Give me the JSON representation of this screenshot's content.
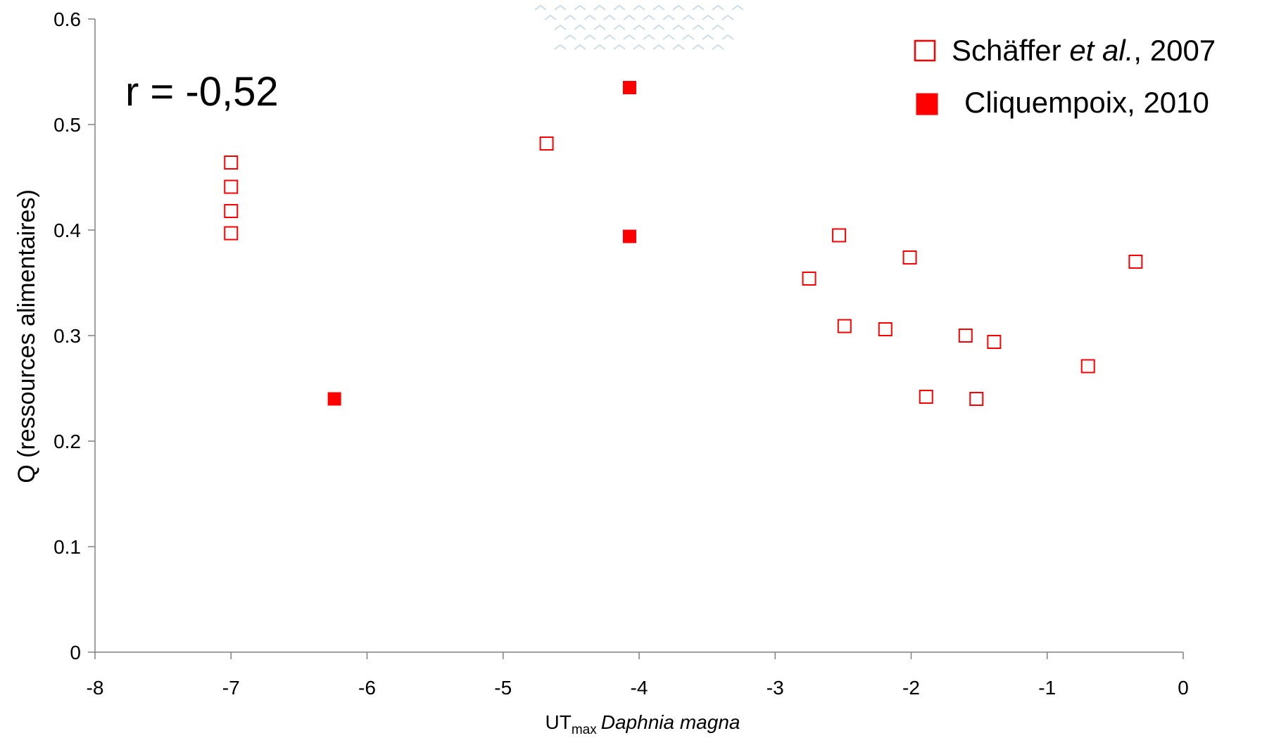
{
  "chart_data": {
    "type": "scatter",
    "title": "",
    "xlabel": {
      "main": "UT",
      "subscript": "max",
      "italic": "Daphnia magna"
    },
    "ylabel": "Q (ressources alimentaires)",
    "xlim": [
      -8,
      0
    ],
    "ylim": [
      0,
      0.6
    ],
    "xticks": [
      "-8",
      "-7",
      "-6",
      "-5",
      "-4",
      "-3",
      "-2",
      "-1",
      "0"
    ],
    "yticks": [
      "0",
      "0.1",
      "0.2",
      "0.3",
      "0.4",
      "0.5",
      "0.6"
    ],
    "grid": false,
    "legend_position": "top-right",
    "annotation": "r = -0,52",
    "series": [
      {
        "name": "Schäffer et al., 2007",
        "name_parts": {
          "before": "Schäffer ",
          "italic": "et al.",
          "after": ", 2007"
        },
        "marker": "hollow-square",
        "color": "#ff0000",
        "x": [
          -7.0,
          -7.0,
          -7.0,
          -7.0,
          -4.68,
          -2.75,
          -2.53,
          -2.49,
          -2.19,
          -2.01,
          -1.89,
          -1.6,
          -1.52,
          -1.39,
          -0.7,
          -0.35
        ],
        "y": [
          0.464,
          0.441,
          0.418,
          0.397,
          0.482,
          0.354,
          0.395,
          0.309,
          0.306,
          0.374,
          0.242,
          0.3,
          0.24,
          0.294,
          0.271,
          0.37
        ]
      },
      {
        "name": "Cliquempoix, 2010",
        "marker": "filled-square",
        "color": "#ff0000",
        "x": [
          -6.24,
          -4.07,
          -4.07
        ],
        "y": [
          0.24,
          0.535,
          0.394
        ]
      }
    ]
  }
}
